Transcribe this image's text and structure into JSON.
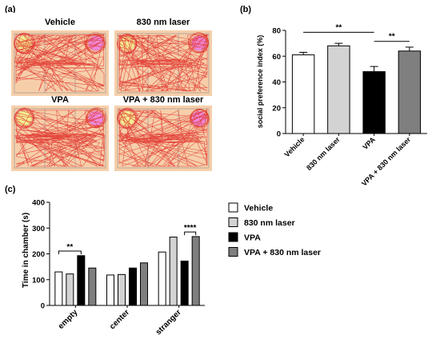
{
  "panel_labels": {
    "a": "(a)",
    "b": "(b)",
    "c": "(c)"
  },
  "panel_a": {
    "titles": [
      "Vehicle",
      "830 nm laser",
      "VPA",
      "VPA + 830 nm laser"
    ],
    "colors": {
      "arena_bg": "#f6cfaa",
      "track": "#e0312b",
      "empty_cup": "#f4ee94",
      "stranger_cup": "#ee88d6",
      "wall": "#b9a79a"
    }
  },
  "chart_data": [
    {
      "type": "bar",
      "panel": "b",
      "title": "",
      "categories": [
        "Vehicle",
        "830 nm laser",
        "VPA",
        "VPA + 830 nm laser"
      ],
      "values": [
        61,
        68,
        48,
        64
      ],
      "errors": [
        2,
        2,
        4,
        3
      ],
      "colors": [
        "#ffffff",
        "#d3d3d3",
        "#000000",
        "#7f7f7f"
      ],
      "xlabel": "",
      "ylabel": "social preference index (%)",
      "ylim": [
        0,
        80
      ],
      "yticks": [
        0,
        20,
        40,
        60,
        80
      ],
      "grid": false,
      "significance": [
        {
          "from": 0,
          "to": 2,
          "label": "**"
        },
        {
          "from": 2,
          "to": 3,
          "label": "**"
        }
      ]
    },
    {
      "type": "bar",
      "panel": "c",
      "title": "",
      "categories": [
        "empty",
        "center",
        "stranger"
      ],
      "series": [
        {
          "name": "Vehicle",
          "values": [
            130,
            118,
            207
          ],
          "color": "#ffffff"
        },
        {
          "name": "830 nm laser",
          "values": [
            122,
            120,
            265
          ],
          "color": "#d3d3d3"
        },
        {
          "name": "VPA",
          "values": [
            193,
            145,
            172
          ],
          "color": "#000000"
        },
        {
          "name": "VPA + 830 nm laser",
          "values": [
            145,
            165,
            267
          ],
          "color": "#7f7f7f"
        }
      ],
      "xlabel": "",
      "ylabel": "Time in chamber (s)",
      "ylim": [
        0,
        400
      ],
      "yticks": [
        0,
        100,
        200,
        300,
        400
      ],
      "grid": false,
      "legend_position": "right",
      "significance": [
        {
          "category": 0,
          "from": 0,
          "to": 2,
          "label": "**"
        },
        {
          "category": 2,
          "from": 2,
          "to": 3,
          "label": "****"
        }
      ]
    }
  ]
}
